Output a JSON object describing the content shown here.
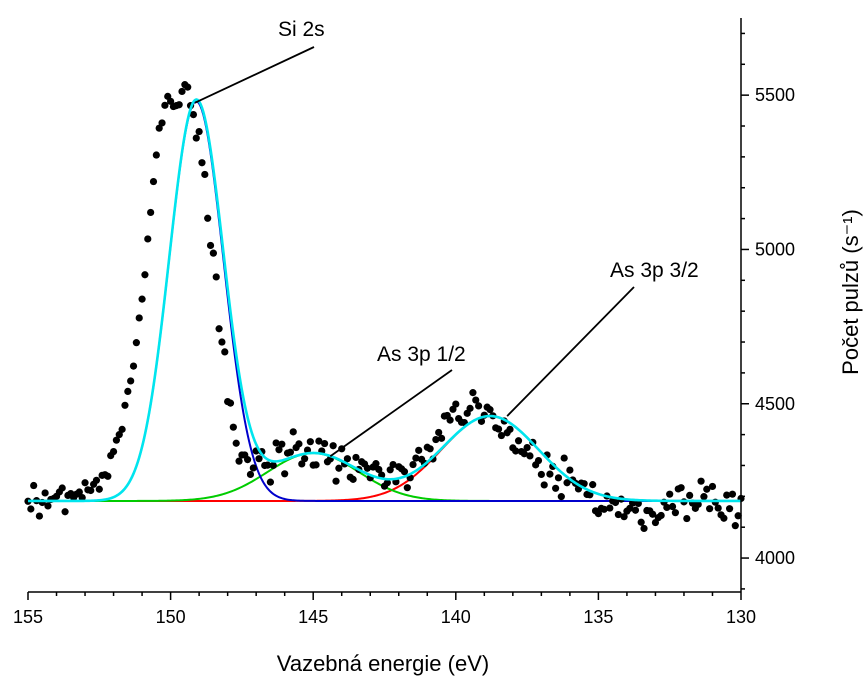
{
  "chart_data": {
    "type": "scatter",
    "title": "",
    "xlabel": "Vazebná energie (eV)",
    "ylabel": "Počet pulzů (s⁻¹)",
    "xlim": [
      155,
      130
    ],
    "ylim": [
      3890,
      5750
    ],
    "x_reversed": true,
    "y_axis_side": "right",
    "grid": false,
    "legend": "none",
    "xticks": [
      155,
      150,
      145,
      140,
      135,
      130
    ],
    "yticks": [
      4000,
      4500,
      5000,
      5500
    ],
    "baseline": 4185,
    "peaks": [
      {
        "name": "Si 2s",
        "center": 149.1,
        "height": 1295,
        "sigma": 0.95,
        "color": "#0000cc"
      },
      {
        "name": "As 3p 1/2",
        "center": 145.0,
        "height": 155,
        "sigma": 1.6,
        "color": "#00cc00"
      },
      {
        "name": "As 3p 3/2",
        "center": 138.8,
        "height": 275,
        "sigma": 1.7,
        "color": "#ff0000"
      }
    ],
    "envelope_color": "#00e5ee",
    "points_x": [
      155.0,
      154.9,
      154.8,
      154.7,
      154.6,
      154.5,
      154.4,
      154.3,
      154.2,
      154.1,
      154.0,
      153.9,
      153.8,
      153.7,
      153.6,
      153.5,
      153.4,
      153.3,
      153.2,
      153.1,
      153.0,
      152.9,
      152.8,
      152.7,
      152.6,
      152.5,
      152.4,
      152.3,
      152.2,
      152.1,
      152.0,
      151.9,
      151.8,
      151.7,
      151.6,
      151.5,
      151.4,
      151.3,
      151.2,
      151.1,
      151.0,
      150.9,
      150.8,
      150.7,
      150.6,
      150.5,
      150.4,
      150.3,
      150.2,
      150.1,
      150.0,
      149.9,
      149.8,
      149.7,
      149.6,
      149.5,
      149.4,
      149.3,
      149.2,
      149.1,
      149.0,
      148.9,
      148.8,
      148.7,
      148.6,
      148.5,
      148.4,
      148.3,
      148.2,
      148.1,
      148.0,
      147.9,
      147.8,
      147.7,
      147.6,
      147.5,
      147.4,
      147.3,
      147.2,
      147.1,
      147.0,
      146.9,
      146.8,
      146.7,
      146.6,
      146.5,
      146.4,
      146.3,
      146.2,
      146.1,
      146.0,
      145.9,
      145.8,
      145.7,
      145.6,
      145.5,
      145.4,
      145.3,
      145.2,
      145.1,
      145.0,
      144.9,
      144.8,
      144.7,
      144.6,
      144.5,
      144.4,
      144.3,
      144.2,
      144.1,
      144.0,
      143.9,
      143.8,
      143.7,
      143.6,
      143.5,
      143.4,
      143.3,
      143.2,
      143.1,
      143.0,
      142.9,
      142.8,
      142.7,
      142.6,
      142.5,
      142.4,
      142.3,
      142.2,
      142.1,
      142.0,
      141.9,
      141.8,
      141.7,
      141.6,
      141.5,
      141.4,
      141.3,
      141.2,
      141.1,
      141.0,
      140.9,
      140.8,
      140.7,
      140.6,
      140.5,
      140.4,
      140.3,
      140.2,
      140.1,
      140.0,
      139.9,
      139.8,
      139.7,
      139.6,
      139.5,
      139.4,
      139.3,
      139.2,
      139.1,
      139.0,
      138.9,
      138.8,
      138.7,
      138.6,
      138.5,
      138.4,
      138.3,
      138.2,
      138.1,
      138.0,
      137.9,
      137.8,
      137.7,
      137.6,
      137.5,
      137.4,
      137.3,
      137.2,
      137.1,
      137.0,
      136.9,
      136.8,
      136.7,
      136.6,
      136.5,
      136.4,
      136.3,
      136.2,
      136.1,
      136.0,
      135.9,
      135.8,
      135.7,
      135.6,
      135.5,
      135.4,
      135.3,
      135.2,
      135.1,
      135.0,
      134.9,
      134.8,
      134.7,
      134.6,
      134.5,
      134.4,
      134.3,
      134.2,
      134.1,
      134.0,
      133.9,
      133.8,
      133.7,
      133.6,
      133.5,
      133.4,
      133.3,
      133.2,
      133.1,
      133.0,
      132.9,
      132.8,
      132.7,
      132.6,
      132.5,
      132.4,
      132.3,
      132.2,
      132.1,
      132.0,
      131.9,
      131.8,
      131.7,
      131.6,
      131.5,
      131.4,
      131.3,
      131.2,
      131.1,
      131.0,
      130.9,
      130.8,
      130.7,
      130.6,
      130.5,
      130.4,
      130.3,
      130.2,
      130.1,
      130.0
    ],
    "points_y": [
      4184,
      4159,
      4235,
      4186,
      4136,
      4180,
      4211,
      4169,
      4190,
      4193,
      4200,
      4214,
      4227,
      4150,
      4203,
      4209,
      4196,
      4207,
      4214,
      4196,
      4244,
      4221,
      4219,
      4239,
      4252,
      4223,
      4268,
      4270,
      4265,
      4332,
      4345,
      4382,
      4400,
      4417,
      4495,
      4540,
      4574,
      4622,
      4698,
      4778,
      4839,
      4918,
      5034,
      5120,
      5220,
      5306,
      5393,
      5410,
      5467,
      5496,
      5480,
      5463,
      5466,
      5469,
      5512,
      5534,
      5526,
      5466,
      5437,
      5361,
      5382,
      5281,
      5243,
      5101,
      5013,
      4988,
      4911,
      4743,
      4700,
      4668,
      4507,
      4502,
      4424,
      4372,
      4314,
      4334,
      4334,
      4319,
      4271,
      4292,
      4347,
      4322,
      4345,
      4300,
      4301,
      4246,
      4300,
      4373,
      4351,
      4369,
      4273,
      4340,
      4343,
      4409,
      4358,
      4370,
      4305,
      4322,
      4350,
      4377,
      4301,
      4302,
      4379,
      4347,
      4371,
      4312,
      4321,
      4364,
      4249,
      4291,
      4354,
      4305,
      4322,
      4262,
      4255,
      4326,
      4287,
      4312,
      4305,
      4291,
      4260,
      4295,
      4306,
      4287,
      4269,
      4233,
      4244,
      4286,
      4303,
      4247,
      4296,
      4289,
      4280,
      4228,
      4260,
      4303,
      4324,
      4349,
      4320,
      4307,
      4359,
      4354,
      4321,
      4384,
      4407,
      4388,
      4460,
      4462,
      4447,
      4482,
      4499,
      4452,
      4440,
      4439,
      4469,
      4485,
      4536,
      4512,
      4493,
      4443,
      4463,
      4489,
      4481,
      4461,
      4422,
      4418,
      4397,
      4444,
      4406,
      4417,
      4357,
      4347,
      4380,
      4345,
      4338,
      4358,
      4331,
      4375,
      4302,
      4316,
      4271,
      4237,
      4334,
      4272,
      4297,
      4226,
      4260,
      4199,
      4324,
      4244,
      4285,
      4253,
      4242,
      4224,
      4243,
      4241,
      4206,
      4205,
      4238,
      4153,
      4144,
      4161,
      4158,
      4201,
      4162,
      4185,
      4180,
      4141,
      4191,
      4134,
      4152,
      4161,
      4178,
      4155,
      4177,
      4116,
      4096,
      4154,
      4153,
      4142,
      4115,
      4131,
      4138,
      4181,
      4164,
      4207,
      4167,
      4147,
      4224,
      4228,
      4182,
      4128,
      4203,
      4178,
      4161,
      4174,
      4249,
      4199,
      4223,
      4160,
      4232,
      4181,
      4162,
      4140,
      4129,
      4204,
      4160,
      4207,
      4105,
      4137,
      4193,
      4223,
      4250,
      4215,
      4260,
      4175
    ],
    "annotations": [
      {
        "text": "Si 2s",
        "target_x": 149.15,
        "target_y": 5475
      },
      {
        "text": "As 3p 1/2",
        "target_x": 144.4,
        "target_y": 4330
      },
      {
        "text": "As 3p 3/2",
        "target_x": 138.2,
        "target_y": 4460
      }
    ]
  }
}
